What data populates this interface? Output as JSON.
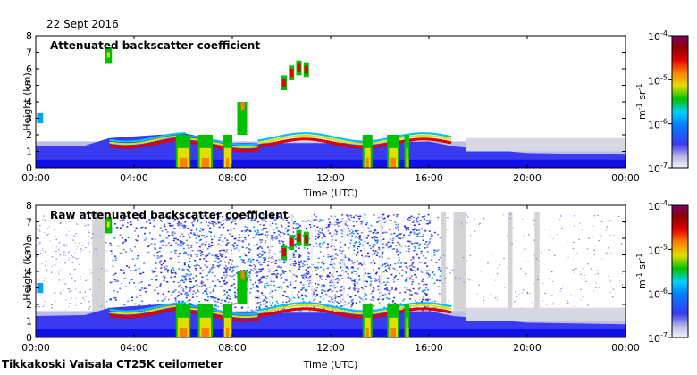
{
  "header": {
    "date": "22 Sept 2016"
  },
  "footer": {
    "instrument": "Tikkakoski Vaisala CT25K ceilometer"
  },
  "colors": {
    "scale": [
      "#efeff6",
      "#bdbde8",
      "#3a3af0",
      "#0000ff",
      "#00c0ff",
      "#00c000",
      "#e0e000",
      "#ff8000",
      "#e00000",
      "#800000",
      "#7a0063"
    ],
    "noise_blue": "#2020e0",
    "missing_gray": "#d0d0d0"
  },
  "chart_data": [
    {
      "type": "heatmap",
      "title": "Attenuated backscatter coefficient",
      "xlabel": "Time (UTC)",
      "ylabel": "Height (km)",
      "x_ticks": [
        "00:00",
        "04:00",
        "08:00",
        "12:00",
        "16:00",
        "20:00",
        "00:00"
      ],
      "xlim_hours": [
        0,
        24
      ],
      "ylim": [
        0,
        8
      ],
      "y_ticks": [
        "0",
        "1",
        "2",
        "3",
        "4",
        "5",
        "6",
        "7",
        "8"
      ],
      "colorbar": {
        "ticks": [
          "10",
          "10",
          "10",
          "10"
        ],
        "exponents": [
          "-4",
          "-5",
          "-6",
          "-7"
        ],
        "unit": "m  sr",
        "unit_exponents": [
          "-1",
          "-1"
        ],
        "scale": "log",
        "range": [
          "1e-7",
          "1e-4"
        ]
      }
    },
    {
      "type": "heatmap",
      "title": "Raw attenuated backscatter coefficient",
      "xlabel": "Time (UTC)",
      "ylabel": "Height (km)",
      "x_ticks": [
        "00:00",
        "04:00",
        "08:00",
        "12:00",
        "16:00",
        "20:00",
        "00:00"
      ],
      "xlim_hours": [
        0,
        24
      ],
      "ylim": [
        0,
        8
      ],
      "y_ticks": [
        "0",
        "1",
        "2",
        "3",
        "4",
        "5",
        "6",
        "7",
        "8"
      ],
      "colorbar": {
        "ticks": [
          "10",
          "10",
          "10",
          "10"
        ],
        "exponents": [
          "-4",
          "-5",
          "-6",
          "-7"
        ],
        "unit": "m  sr",
        "unit_exponents": [
          "-1",
          "-1"
        ],
        "scale": "log",
        "range": [
          "1e-7",
          "1e-4"
        ]
      }
    }
  ]
}
